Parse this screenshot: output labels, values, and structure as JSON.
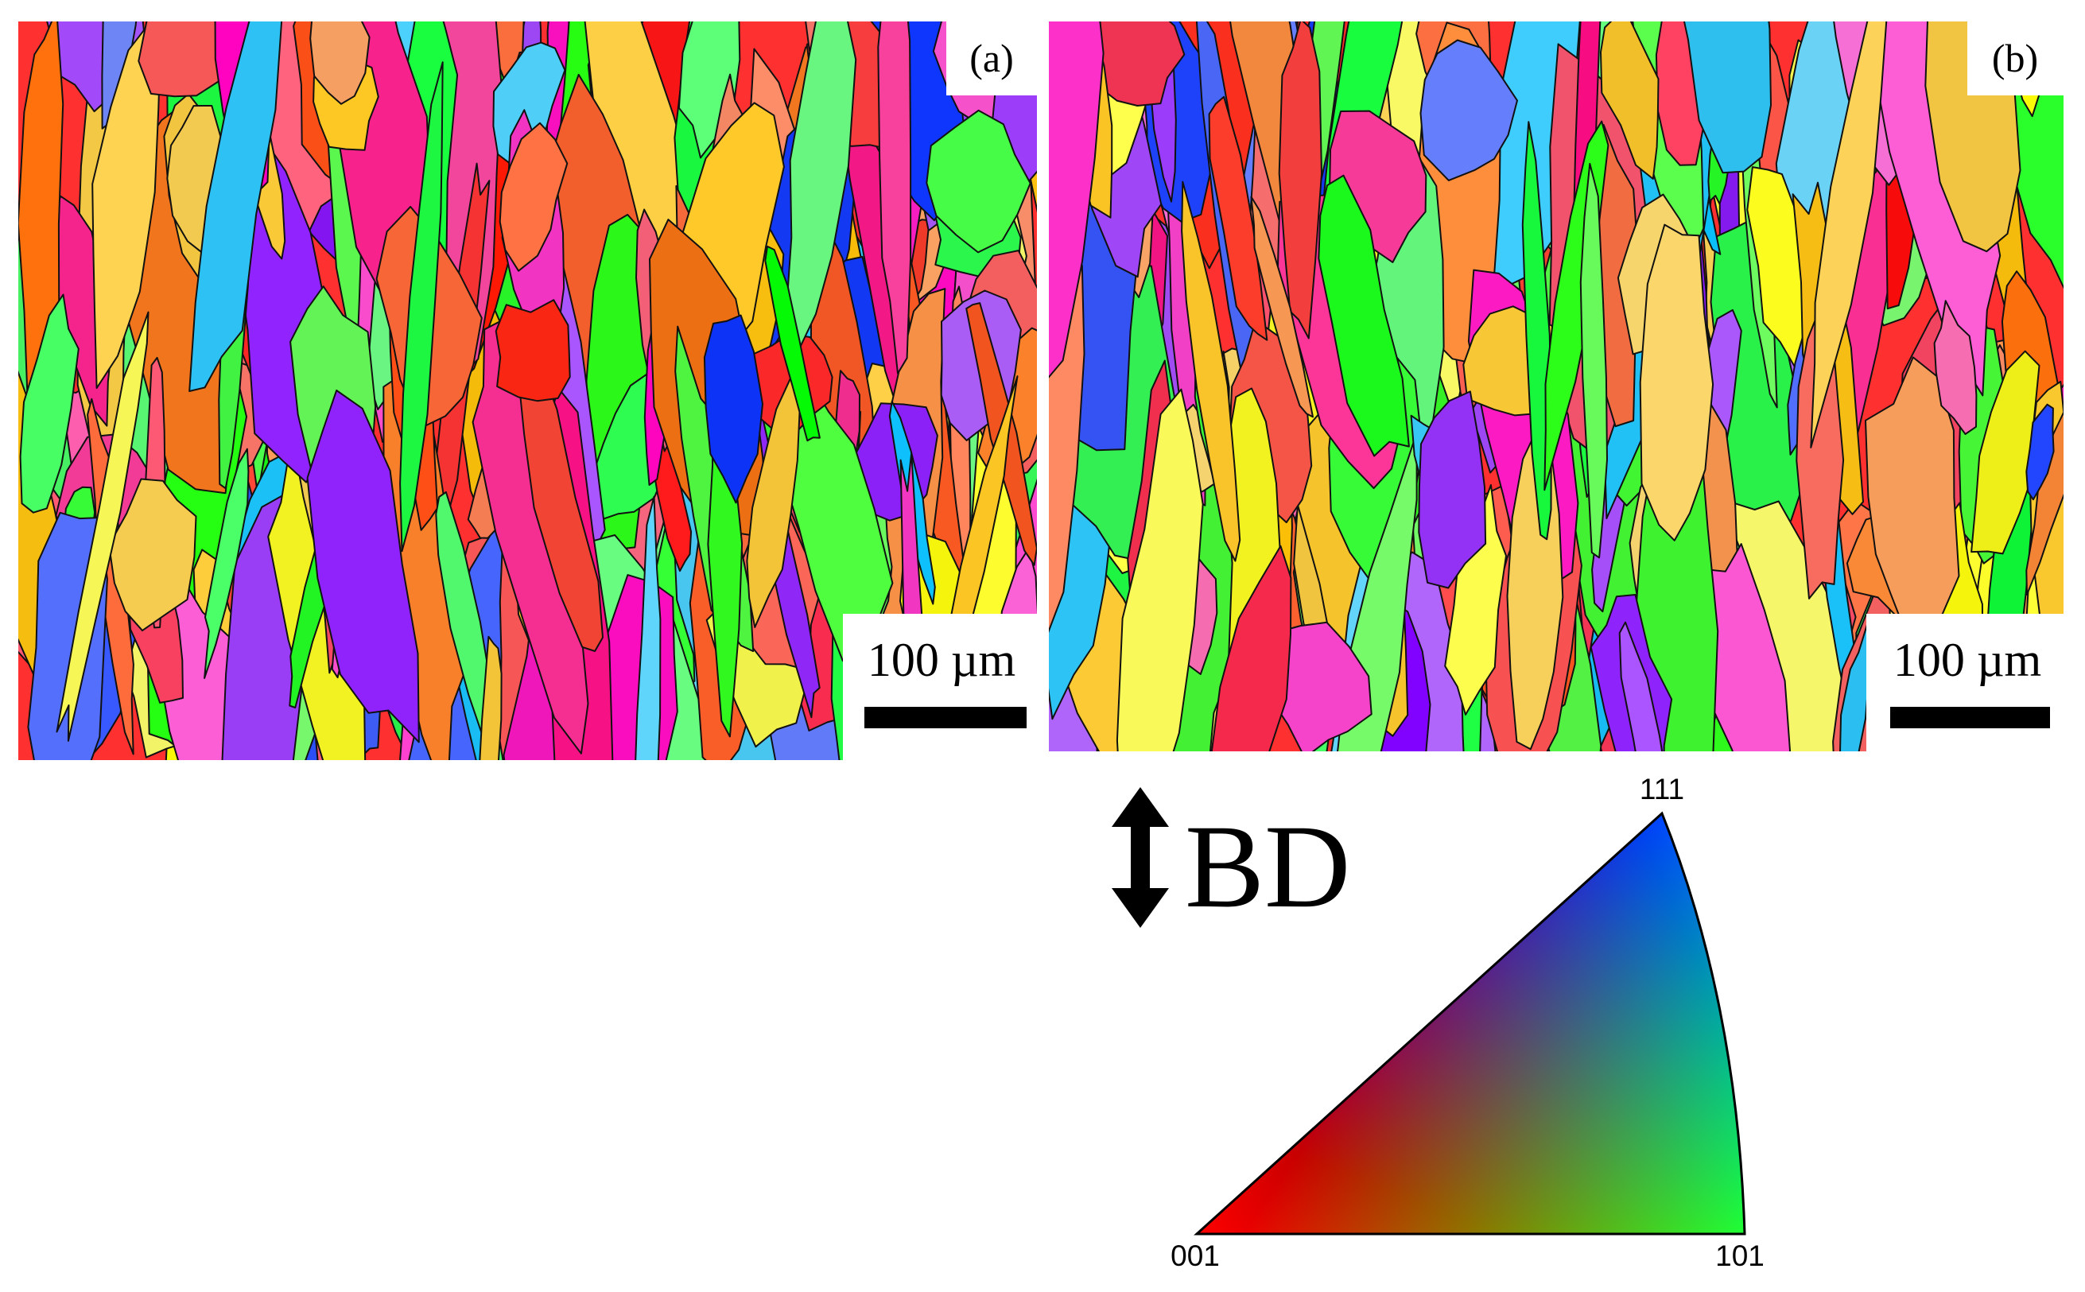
{
  "panels": [
    {
      "label": "(a)",
      "scale_bar": "100 µm"
    },
    {
      "label": "(b)",
      "scale_bar": "100 µm"
    }
  ],
  "legend": {
    "direction": "BD",
    "corners": {
      "top": "111",
      "bottom_left": "001",
      "bottom_right": "101"
    }
  }
}
